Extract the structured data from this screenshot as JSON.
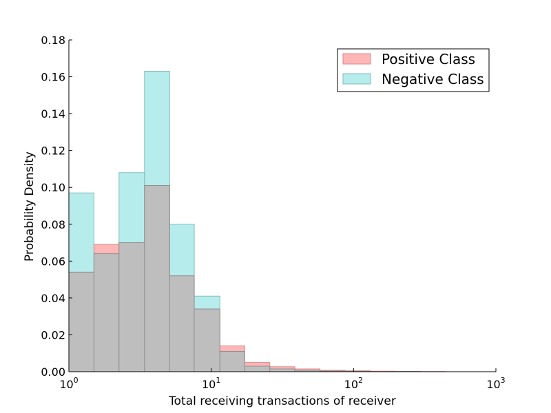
{
  "chart_data": {
    "type": "histogram",
    "xlabel": "Total receiving transactions of receiver",
    "ylabel": "Probability Density",
    "xscale": "log",
    "xlim": [
      1,
      1000
    ],
    "ylim": [
      0,
      0.18
    ],
    "x_ticks": [
      1,
      10,
      100,
      1000
    ],
    "y_ticks": [
      "0.00",
      "0.02",
      "0.04",
      "0.06",
      "0.08",
      "0.10",
      "0.12",
      "0.14",
      "0.16",
      "0.18"
    ],
    "grid": false,
    "legend_position": "top-right",
    "bin_edges": [
      1.0,
      1.5,
      2.25,
      3.4,
      5.1,
      7.6,
      11.5,
      17.2,
      25.8,
      38.7,
      58.1,
      87.2,
      130.8,
      196.2,
      294.3,
      441.4,
      662.1
    ],
    "series": [
      {
        "name": "Positive Class",
        "color": "#ffb6b6",
        "edge_color": "#d88a8a",
        "values": [
          0.054,
          0.069,
          0.07,
          0.101,
          0.052,
          0.034,
          0.014,
          0.005,
          0.0027,
          0.0015,
          0.0008,
          0.0005,
          0.0003,
          0.0001,
          0.0001,
          0.0
        ]
      },
      {
        "name": "Negative Class",
        "color": "#b7ecec",
        "edge_color": "#7fbcbc",
        "values": [
          0.097,
          0.064,
          0.108,
          0.163,
          0.08,
          0.041,
          0.011,
          0.003,
          0.0015,
          0.0007,
          0.0004,
          0.0002,
          0.0001,
          0.0001,
          0.0,
          0.0
        ]
      }
    ]
  }
}
